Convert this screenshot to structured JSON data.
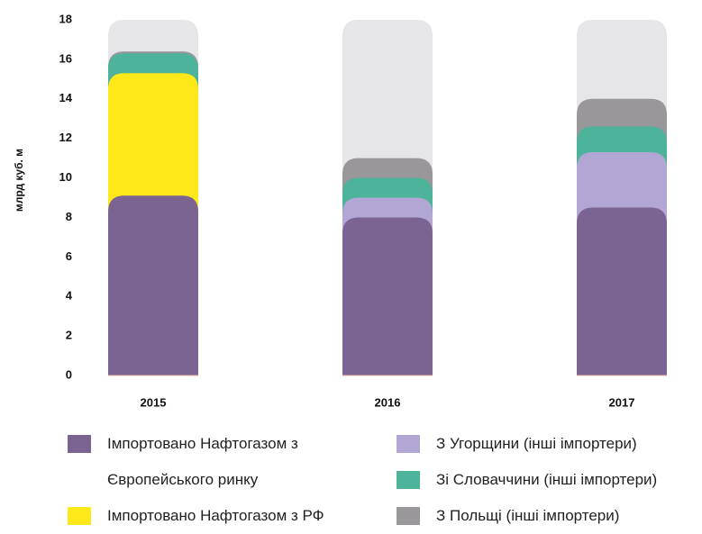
{
  "chart_data": {
    "type": "stacked_bar",
    "y_label": "млрд куб. м",
    "categories": [
      "2015",
      "2016",
      "2017"
    ],
    "series": [
      {
        "name": "Імпортовано Нафтогазом з Європейського ринку",
        "color": "#7b6491",
        "values": [
          9.1,
          8.0,
          8.5
        ]
      },
      {
        "name": "Імпортовано Нафтогазом з РФ",
        "color": "#ffe81a",
        "values": [
          6.2,
          0,
          0
        ]
      },
      {
        "name": "З Угорщини (інші імпортери)",
        "color": "#b2a7d4",
        "values": [
          0,
          1.0,
          2.8
        ]
      },
      {
        "name": "Зі Словаччини (інші імпортери)",
        "color": "#4db39a",
        "values": [
          1.0,
          1.0,
          1.3
        ]
      },
      {
        "name": "З Польщі (інші імпортери)",
        "color": "#9a979b",
        "values": [
          0.1,
          1.0,
          1.4
        ]
      }
    ],
    "ylim": [
      0,
      18
    ],
    "yticks": [
      0,
      2,
      4,
      6,
      8,
      10,
      12,
      14,
      16,
      18
    ]
  }
}
